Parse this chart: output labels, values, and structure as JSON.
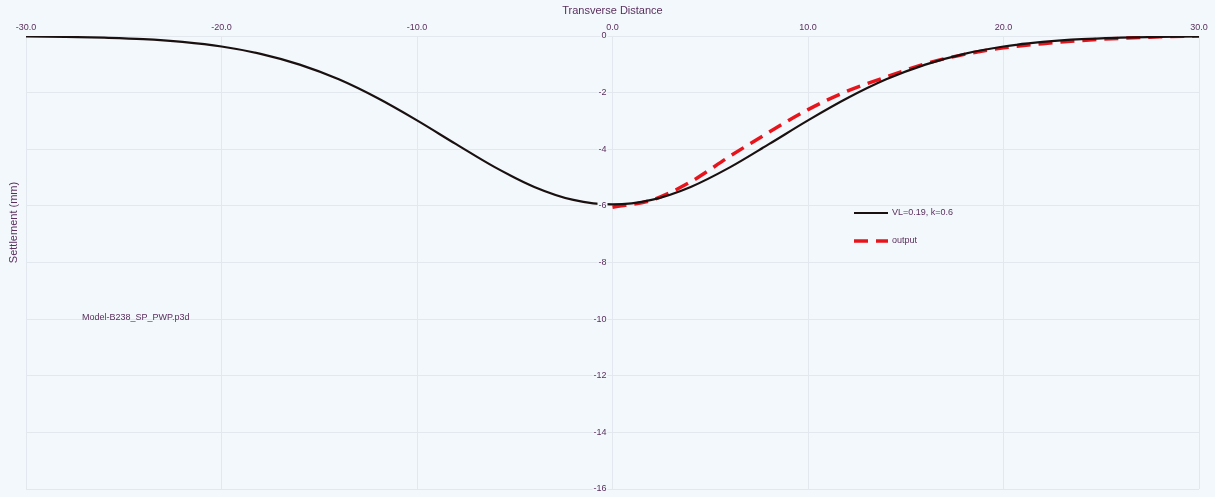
{
  "chart_data": {
    "type": "line",
    "xlabel": "Transverse Distance",
    "ylabel": "Settlement (mm)",
    "xlim": [
      -30,
      30
    ],
    "xticks": [
      {
        "value": -30,
        "label": "-30.0"
      },
      {
        "value": -20,
        "label": "-20.0"
      },
      {
        "value": -10,
        "label": "-10.0"
      },
      {
        "value": 0,
        "label": "0.0"
      },
      {
        "value": 10,
        "label": "10.0"
      },
      {
        "value": 20,
        "label": "20.0"
      },
      {
        "value": 30,
        "label": "30.0"
      }
    ],
    "ylim": [
      -16,
      0
    ],
    "yticks": [
      0,
      -2,
      -4,
      -6,
      -8,
      -10,
      -12,
      -14,
      -16
    ],
    "grid": true,
    "legend": "right",
    "marker": "none",
    "annotations": [
      "Model-B238_SP_PWP.p3d"
    ],
    "series": [
      {
        "name": "VL=0.19, k=0.6",
        "color": "#1a1010",
        "line_style": "solid",
        "x": [
          -30,
          -28,
          -26,
          -24,
          -22,
          -20,
          -18,
          -16,
          -14,
          -12,
          -10,
          -8,
          -6,
          -4,
          -2,
          0,
          2,
          4,
          6,
          8,
          10,
          12,
          14,
          16,
          18,
          20,
          22,
          24,
          26,
          28,
          30
        ],
        "values": [
          -0.01,
          -0.03,
          -0.06,
          -0.11,
          -0.21,
          -0.37,
          -0.63,
          -1.01,
          -1.53,
          -2.2,
          -2.98,
          -3.82,
          -4.64,
          -5.33,
          -5.79,
          -5.95,
          -5.79,
          -5.33,
          -4.64,
          -3.82,
          -2.98,
          -2.2,
          -1.53,
          -1.01,
          -0.63,
          -0.37,
          -0.21,
          -0.11,
          -0.06,
          -0.03,
          -0.01
        ]
      },
      {
        "name": "output",
        "color": "#e8141c",
        "line_style": "dashed",
        "x": [
          0,
          2,
          4,
          6,
          8,
          10,
          12,
          14,
          16,
          18,
          20,
          22,
          24,
          26,
          28,
          30
        ],
        "values": [
          -6.05,
          -5.8,
          -5.15,
          -4.25,
          -3.4,
          -2.6,
          -1.95,
          -1.45,
          -0.98,
          -0.65,
          -0.42,
          -0.27,
          -0.16,
          -0.08,
          -0.03,
          0
        ]
      }
    ]
  }
}
